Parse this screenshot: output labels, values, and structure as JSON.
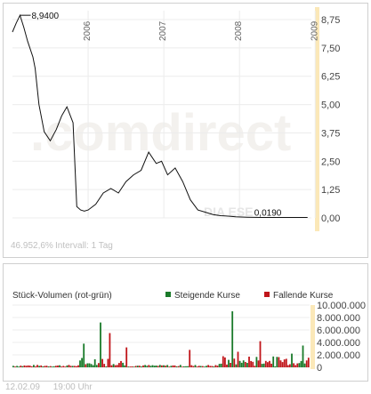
{
  "chart_data": [
    {
      "type": "line",
      "x_labels": [
        "2006",
        "2007",
        "2008",
        "2009"
      ],
      "y_ticks": [
        "8,75",
        "7,50",
        "6,25",
        "5,00",
        "3,75",
        "2,50",
        "1,25",
        "0,00"
      ],
      "ylim": [
        0,
        8.75
      ],
      "y_tick_values": [
        8.75,
        7.5,
        6.25,
        5.0,
        3.75,
        2.5,
        1.25,
        0.0
      ],
      "grid": true,
      "x": [
        2005.0,
        2005.05,
        2005.1,
        2005.15,
        2005.2,
        2005.27,
        2005.3,
        2005.35,
        2005.42,
        2005.5,
        2005.58,
        2005.65,
        2005.72,
        2005.8,
        2005.85,
        2005.9,
        2005.95,
        2006.0,
        2006.1,
        2006.2,
        2006.3,
        2006.4,
        2006.5,
        2006.6,
        2006.7,
        2006.8,
        2006.9,
        2006.97,
        2007.05,
        2007.15,
        2007.25,
        2007.35,
        2007.45,
        2007.55,
        2007.65,
        2007.75,
        2007.85,
        2007.95,
        2008.1,
        2008.3,
        2008.5,
        2008.7,
        2008.9
      ],
      "values": [
        8.2,
        8.6,
        8.94,
        8.4,
        7.8,
        7.1,
        6.6,
        5.0,
        3.8,
        3.4,
        3.9,
        4.5,
        4.9,
        4.2,
        0.5,
        0.35,
        0.3,
        0.35,
        0.6,
        1.1,
        1.3,
        1.1,
        1.6,
        1.9,
        2.1,
        2.9,
        2.4,
        2.5,
        1.9,
        2.2,
        1.6,
        0.8,
        0.35,
        0.25,
        0.15,
        0.1,
        0.08,
        0.05,
        0.03,
        0.02,
        0.02,
        0.019,
        0.019
      ],
      "annotations": {
        "high": "8,9400",
        "last": "0,0190"
      },
      "watermark": ".comdirect",
      "source_mark": "DIA ESE",
      "status_left": "46.952,6%",
      "status_right": "Intervall: 1 Tag"
    },
    {
      "type": "bar",
      "title": "Stück-Volumen (rot-grün)",
      "legend": [
        {
          "name": "Steigende Kurse",
          "color": "#1a7a2a"
        },
        {
          "name": "Fallende Kurse",
          "color": "#c0151a"
        }
      ],
      "y_ticks": [
        "10.000.000",
        "8.000.000",
        "6.000.000",
        "4.000.000",
        "2.000.000",
        "0"
      ],
      "ylim": [
        0,
        10000000
      ],
      "grid": true,
      "legend_position": "top-right"
    }
  ],
  "footer": {
    "date": "12.02.09",
    "time": "19:00 Uhr"
  }
}
